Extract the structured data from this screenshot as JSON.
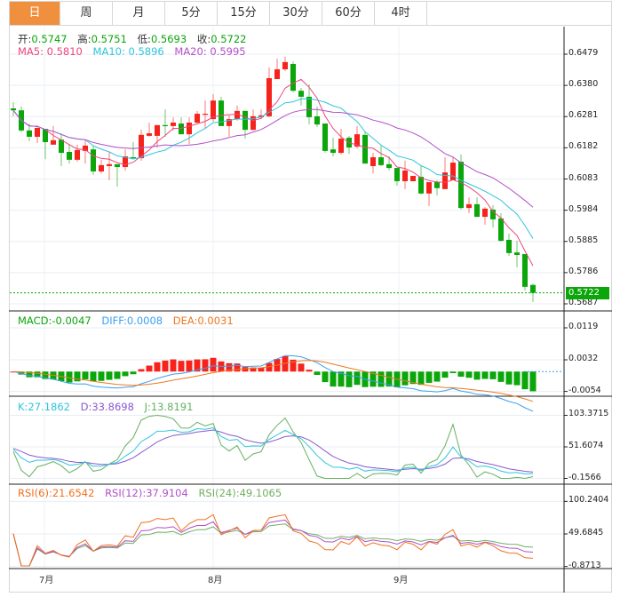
{
  "tabs": [
    "日",
    "周",
    "月",
    "5分",
    "15分",
    "30分",
    "60分",
    "4时"
  ],
  "active_tab": 0,
  "ohlc_legend": {
    "open_label": "开:",
    "open": "0.5747",
    "high_label": "高:",
    "high": "0.5751",
    "low_label": "低:",
    "low": "0.5693",
    "close_label": "收:",
    "close": "0.5722"
  },
  "ma_legend": {
    "ma5": "MA5: 0.5810",
    "ma10": "MA10: 0.5896",
    "ma20": "MA20: 0.5995"
  },
  "macd_legend": {
    "macd": "MACD:-0.0047",
    "diff": "DIFF:0.0008",
    "dea": "DEA:0.0031"
  },
  "kdj_legend": {
    "k": "K:27.1862",
    "d": "D:33.8698",
    "j": "J:13.8191"
  },
  "rsi_legend": {
    "rsi6": "RSI(6):21.6542",
    "rsi12": "RSI(12):37.9104",
    "rsi24": "RSI(24):49.1065"
  },
  "price_axis": [
    "0.6479",
    "0.6380",
    "0.6281",
    "0.6182",
    "0.6083",
    "0.5984",
    "0.5885",
    "0.5786",
    "0.5687"
  ],
  "current_price": "0.5722",
  "macd_axis": [
    "0.0119",
    "0.0032",
    "-0.0054"
  ],
  "kdj_axis": [
    "103.3715",
    "51.6074",
    "-0.1566"
  ],
  "rsi_axis": [
    "100.2404",
    "49.6845",
    "-0.8713"
  ],
  "x_labels": [
    "7月",
    "8月",
    "9月"
  ],
  "colors": {
    "up": "#f5231b",
    "down": "#0aa60a",
    "ma5": "#f0457a",
    "ma10": "#2ec5dc",
    "ma20": "#b44fc8",
    "diff": "#3aa0f0",
    "dea": "#f07820",
    "k": "#2ec5dc",
    "d": "#8a58d0",
    "j": "#66b060",
    "rsi6": "#f07020",
    "rsi12": "#b050c8",
    "rsi24": "#70b060",
    "tab_active": "#f0903e"
  },
  "chart_data": {
    "type": "candlestick",
    "fields": [
      "open",
      "high",
      "low",
      "close"
    ],
    "candles": [
      [
        0.6307,
        0.6327,
        0.6282,
        0.6301
      ],
      [
        0.6301,
        0.6313,
        0.6231,
        0.6237
      ],
      [
        0.6237,
        0.6259,
        0.6203,
        0.6217
      ],
      [
        0.6217,
        0.6254,
        0.6197,
        0.6245
      ],
      [
        0.6242,
        0.6242,
        0.6146,
        0.62
      ],
      [
        0.6192,
        0.6251,
        0.6192,
        0.6206
      ],
      [
        0.6208,
        0.6228,
        0.6124,
        0.6166
      ],
      [
        0.6169,
        0.6194,
        0.6132,
        0.6144
      ],
      [
        0.6144,
        0.6192,
        0.6138,
        0.6175
      ],
      [
        0.6172,
        0.6206,
        0.6132,
        0.6189
      ],
      [
        0.6177,
        0.6189,
        0.6096,
        0.6107
      ],
      [
        0.6107,
        0.6144,
        0.6101,
        0.6127
      ],
      [
        0.6124,
        0.6169,
        0.6079,
        0.613
      ],
      [
        0.613,
        0.613,
        0.6059,
        0.6121
      ],
      [
        0.6121,
        0.6177,
        0.611,
        0.6155
      ],
      [
        0.6152,
        0.62,
        0.6149,
        0.6149
      ],
      [
        0.6149,
        0.6239,
        0.6141,
        0.6223
      ],
      [
        0.622,
        0.6262,
        0.6217,
        0.6228
      ],
      [
        0.622,
        0.6254,
        0.6183,
        0.6254
      ],
      [
        0.6254,
        0.6304,
        0.6217,
        0.6251
      ],
      [
        0.6251,
        0.6279,
        0.6237,
        0.6262
      ],
      [
        0.6259,
        0.6279,
        0.6225,
        0.6225
      ],
      [
        0.6225,
        0.6279,
        0.6194,
        0.6262
      ],
      [
        0.6262,
        0.6299,
        0.6256,
        0.629
      ],
      [
        0.6287,
        0.6332,
        0.6245,
        0.629
      ],
      [
        0.6273,
        0.6352,
        0.6265,
        0.6332
      ],
      [
        0.6332,
        0.6344,
        0.6251,
        0.6251
      ],
      [
        0.6251,
        0.6285,
        0.6217,
        0.6273
      ],
      [
        0.6273,
        0.6316,
        0.6268,
        0.6299
      ],
      [
        0.6299,
        0.6301,
        0.6211,
        0.6239
      ],
      [
        0.6239,
        0.6304,
        0.6237,
        0.6282
      ],
      [
        0.6279,
        0.6304,
        0.6273,
        0.6285
      ],
      [
        0.6282,
        0.6437,
        0.6279,
        0.6403
      ],
      [
        0.64,
        0.6465,
        0.64,
        0.6431
      ],
      [
        0.6431,
        0.6471,
        0.6425,
        0.6454
      ],
      [
        0.6448,
        0.6456,
        0.6358,
        0.6363
      ],
      [
        0.6363,
        0.6372,
        0.6316,
        0.6344
      ],
      [
        0.6344,
        0.6383,
        0.6256,
        0.6279
      ],
      [
        0.6282,
        0.6313,
        0.6248,
        0.6256
      ],
      [
        0.6259,
        0.6259,
        0.6166,
        0.6172
      ],
      [
        0.6177,
        0.6214,
        0.6155,
        0.6166
      ],
      [
        0.6166,
        0.6242,
        0.6161,
        0.6211
      ],
      [
        0.6214,
        0.622,
        0.6163,
        0.6183
      ],
      [
        0.6186,
        0.6251,
        0.618,
        0.6225
      ],
      [
        0.6223,
        0.6234,
        0.6132,
        0.6132
      ],
      [
        0.6124,
        0.6166,
        0.6101,
        0.6152
      ],
      [
        0.6152,
        0.6192,
        0.6124,
        0.6127
      ],
      [
        0.613,
        0.6155,
        0.611,
        0.6118
      ],
      [
        0.6118,
        0.6118,
        0.6062,
        0.6076
      ],
      [
        0.6076,
        0.6141,
        0.6051,
        0.611
      ],
      [
        0.6076,
        0.6093,
        0.6076,
        0.6093
      ],
      [
        0.609,
        0.6127,
        0.6034,
        0.6037
      ],
      [
        0.6037,
        0.6073,
        0.5997,
        0.6073
      ],
      [
        0.6073,
        0.6079,
        0.6031,
        0.6054
      ],
      [
        0.6051,
        0.6152,
        0.6051,
        0.6104
      ],
      [
        0.6079,
        0.6155,
        0.6079,
        0.6135
      ],
      [
        0.6138,
        0.6161,
        0.5986,
        0.5991
      ],
      [
        0.5991,
        0.6025,
        0.5975,
        0.6003
      ],
      [
        0.6003,
        0.6025,
        0.5963,
        0.5963
      ],
      [
        0.5963,
        0.5994,
        0.5938,
        0.5989
      ],
      [
        0.5986,
        0.6,
        0.5929,
        0.5955
      ],
      [
        0.5958,
        0.5975,
        0.5884,
        0.5887
      ],
      [
        0.589,
        0.591,
        0.5839,
        0.5848
      ],
      [
        0.585,
        0.5887,
        0.5803,
        0.5842
      ],
      [
        0.5845,
        0.5845,
        0.5729,
        0.5741
      ],
      [
        0.5747,
        0.5751,
        0.5693,
        0.5722
      ]
    ],
    "price_range": [
      0.5687,
      0.6479
    ],
    "macd_range": [
      -0.0054,
      0.0119
    ],
    "kdj_range": [
      -0.1566,
      103.3715
    ],
    "rsi_range": [
      -0.8713,
      100.2404
    ],
    "month_label_index": [
      4,
      25,
      48
    ]
  }
}
